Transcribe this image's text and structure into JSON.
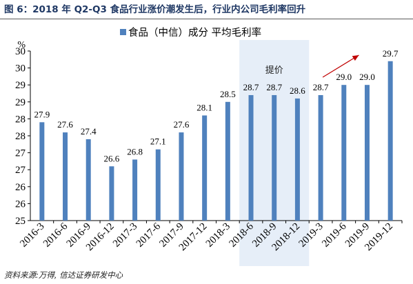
{
  "figure": {
    "title": "图 6：2018 年 Q2-Q3 食品行业涨价潮发生后，行业内公司毛利率回升",
    "source": "资料来源:万得, 信达证券研发中心"
  },
  "colors": {
    "bar": "#4f81bd",
    "highlight_band": "#e6eef8",
    "arrow": "#c00000",
    "title": "#1f3864"
  },
  "chart_data": {
    "type": "bar",
    "title": "",
    "legend": {
      "label": "食品（中信）成分 平均毛利率",
      "placement": "top-center"
    },
    "ylabel": "%",
    "ylim": [
      25,
      30
    ],
    "y_ticks": [
      "25",
      "26",
      "26",
      "27",
      "27",
      "28",
      "28",
      "29",
      "29",
      "30",
      "30"
    ],
    "categories": [
      "2016-3",
      "2016-6",
      "2016-9",
      "2016-12",
      "2017-3",
      "2017-6",
      "2017-9",
      "2017-12",
      "2018-3",
      "2018-6",
      "2018-9",
      "2018-12",
      "2019-3",
      "2019-6",
      "2019-9",
      "2019-12"
    ],
    "series": [
      {
        "name": "食品（中信）成分 平均毛利率",
        "values": [
          27.9,
          27.6,
          27.4,
          26.6,
          26.8,
          27.1,
          27.6,
          28.1,
          28.5,
          28.7,
          28.7,
          28.6,
          28.7,
          29.0,
          29.0,
          29.7
        ],
        "labels": [
          "27.9",
          "27.6",
          "27.4",
          "26.6",
          "26.8",
          "27.1",
          "27.6",
          "28.1",
          "28.5",
          "28.7",
          "28.7",
          "28.6",
          "28.7",
          "29.0",
          "29.0",
          "29.7"
        ]
      }
    ],
    "highlight": {
      "label": "提价",
      "from": "2018-6",
      "to": "2018-12"
    },
    "trend_arrow": {
      "from": "2019-3",
      "to": "2019-9",
      "direction": "up"
    },
    "grid": false
  }
}
